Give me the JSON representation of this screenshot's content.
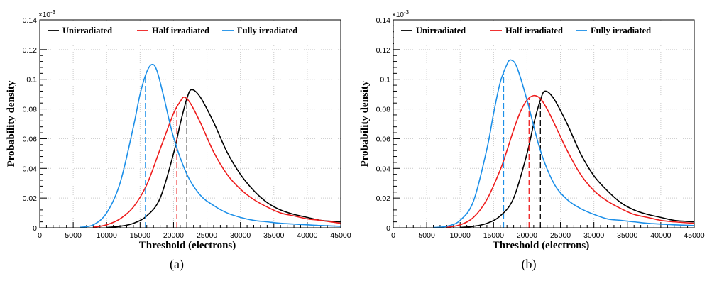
{
  "chart_data": [
    {
      "type": "line",
      "panel_label": "(a)",
      "xlabel": "Threshold (electrons)",
      "ylabel": "Probability density",
      "y_multiplier": "×10⁻³",
      "exp_base": "×10",
      "exp_power": "-3",
      "xlim": [
        0,
        45000
      ],
      "ylim": [
        0,
        0.14
      ],
      "x_ticks": [
        "0",
        "5000",
        "10000",
        "15000",
        "20000",
        "25000",
        "30000",
        "35000",
        "40000",
        "45000"
      ],
      "y_ticks": [
        "0",
        "0.02",
        "0.04",
        "0.06",
        "0.08",
        "0.1",
        "0.12",
        "0.14"
      ],
      "grid": true,
      "legend_position": "top",
      "series": [
        {
          "name": "Unirradiated",
          "color": "#000000",
          "x": [
            10000,
            12000,
            14000,
            16000,
            18000,
            20000,
            21000,
            22000,
            22700,
            24000,
            26000,
            28000,
            30000,
            32000,
            34000,
            36000,
            38000,
            40000,
            42000,
            45000
          ],
          "y": [
            0.0002,
            0.001,
            0.003,
            0.008,
            0.02,
            0.05,
            0.07,
            0.087,
            0.093,
            0.088,
            0.071,
            0.051,
            0.036,
            0.025,
            0.017,
            0.012,
            0.009,
            0.007,
            0.005,
            0.004
          ],
          "threshold_line": 22000
        },
        {
          "name": "Half irradiated",
          "color": "#ee1c1c",
          "x": [
            8000,
            10000,
            12000,
            14000,
            16000,
            18000,
            20000,
            21000,
            21600,
            22500,
            24000,
            26000,
            28000,
            30000,
            32000,
            34000,
            36000,
            38000,
            40000,
            42000,
            45000
          ],
          "y": [
            0.0003,
            0.002,
            0.006,
            0.014,
            0.029,
            0.053,
            0.077,
            0.085,
            0.088,
            0.084,
            0.071,
            0.051,
            0.036,
            0.026,
            0.019,
            0.014,
            0.01,
            0.008,
            0.006,
            0.005,
            0.003
          ],
          "threshold_line": 20500
        },
        {
          "name": "Fully irradiated",
          "color": "#1c8fe8",
          "x": [
            6000,
            8000,
            10000,
            12000,
            14000,
            15000,
            16000,
            16800,
            17500,
            18500,
            20000,
            22000,
            24000,
            26000,
            28000,
            30000,
            32000,
            34000,
            36000,
            38000,
            40000,
            42000,
            45000
          ],
          "y": [
            0.0003,
            0.002,
            0.01,
            0.03,
            0.068,
            0.09,
            0.105,
            0.11,
            0.106,
            0.089,
            0.061,
            0.036,
            0.022,
            0.015,
            0.01,
            0.007,
            0.005,
            0.004,
            0.003,
            0.0025,
            0.002,
            0.0015,
            0.001
          ],
          "threshold_line": 15800
        }
      ]
    },
    {
      "type": "line",
      "panel_label": "(b)",
      "xlabel": "Threshold (electrons)",
      "ylabel": "Probability density",
      "y_multiplier": "×10⁻³",
      "exp_base": "×10",
      "exp_power": "-3",
      "xlim": [
        0,
        45000
      ],
      "ylim": [
        0,
        0.14
      ],
      "x_ticks": [
        "0",
        "5000",
        "10000",
        "15000",
        "20000",
        "25000",
        "30000",
        "35000",
        "40000",
        "45000"
      ],
      "y_ticks": [
        "0",
        "0.02",
        "0.04",
        "0.06",
        "0.08",
        "0.1",
        "0.12",
        "0.14"
      ],
      "grid": true,
      "legend_position": "top",
      "series": [
        {
          "name": "Unirradiated",
          "color": "#000000",
          "x": [
            10000,
            12000,
            14000,
            16000,
            18000,
            20000,
            21000,
            22000,
            22700,
            24000,
            26000,
            28000,
            30000,
            32000,
            34000,
            36000,
            38000,
            40000,
            42000,
            45000
          ],
          "y": [
            0.0002,
            0.001,
            0.003,
            0.008,
            0.02,
            0.05,
            0.07,
            0.086,
            0.092,
            0.087,
            0.07,
            0.05,
            0.035,
            0.025,
            0.017,
            0.012,
            0.009,
            0.007,
            0.005,
            0.004
          ],
          "threshold_line": 22000
        },
        {
          "name": "Half irradiated",
          "color": "#ee1c1c",
          "x": [
            8000,
            10000,
            12000,
            14000,
            16000,
            17000,
            18000,
            19000,
            20000,
            21000,
            22000,
            23000,
            24000,
            26000,
            28000,
            30000,
            32000,
            34000,
            36000,
            38000,
            40000,
            42000,
            45000
          ],
          "y": [
            0.0003,
            0.002,
            0.007,
            0.019,
            0.039,
            0.052,
            0.066,
            0.078,
            0.086,
            0.089,
            0.087,
            0.08,
            0.071,
            0.052,
            0.036,
            0.025,
            0.018,
            0.013,
            0.009,
            0.007,
            0.005,
            0.004,
            0.003
          ],
          "threshold_line": 20300
        },
        {
          "name": "Fully irradiated",
          "color": "#1c8fe8",
          "x": [
            6000,
            8000,
            10000,
            12000,
            14000,
            15000,
            16000,
            17000,
            17600,
            18500,
            20000,
            22000,
            24000,
            26000,
            28000,
            30000,
            32000,
            34000,
            36000,
            38000,
            40000,
            42000,
            45000
          ],
          "y": [
            0.0002,
            0.001,
            0.005,
            0.018,
            0.053,
            0.077,
            0.098,
            0.11,
            0.113,
            0.108,
            0.086,
            0.052,
            0.03,
            0.019,
            0.013,
            0.009,
            0.006,
            0.005,
            0.004,
            0.003,
            0.0025,
            0.002,
            0.0015
          ],
          "threshold_line": 16500
        }
      ]
    }
  ]
}
